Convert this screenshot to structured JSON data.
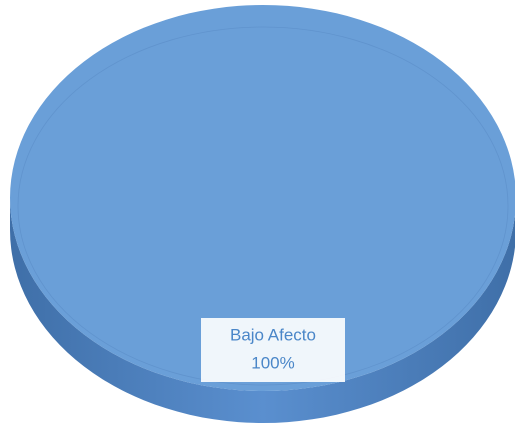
{
  "chart_data": {
    "type": "pie",
    "categories": [
      "Bajo Afecto"
    ],
    "values": [
      100
    ],
    "value_labels": [
      "100%"
    ],
    "colors": [
      "#6a9fd8"
    ]
  }
}
